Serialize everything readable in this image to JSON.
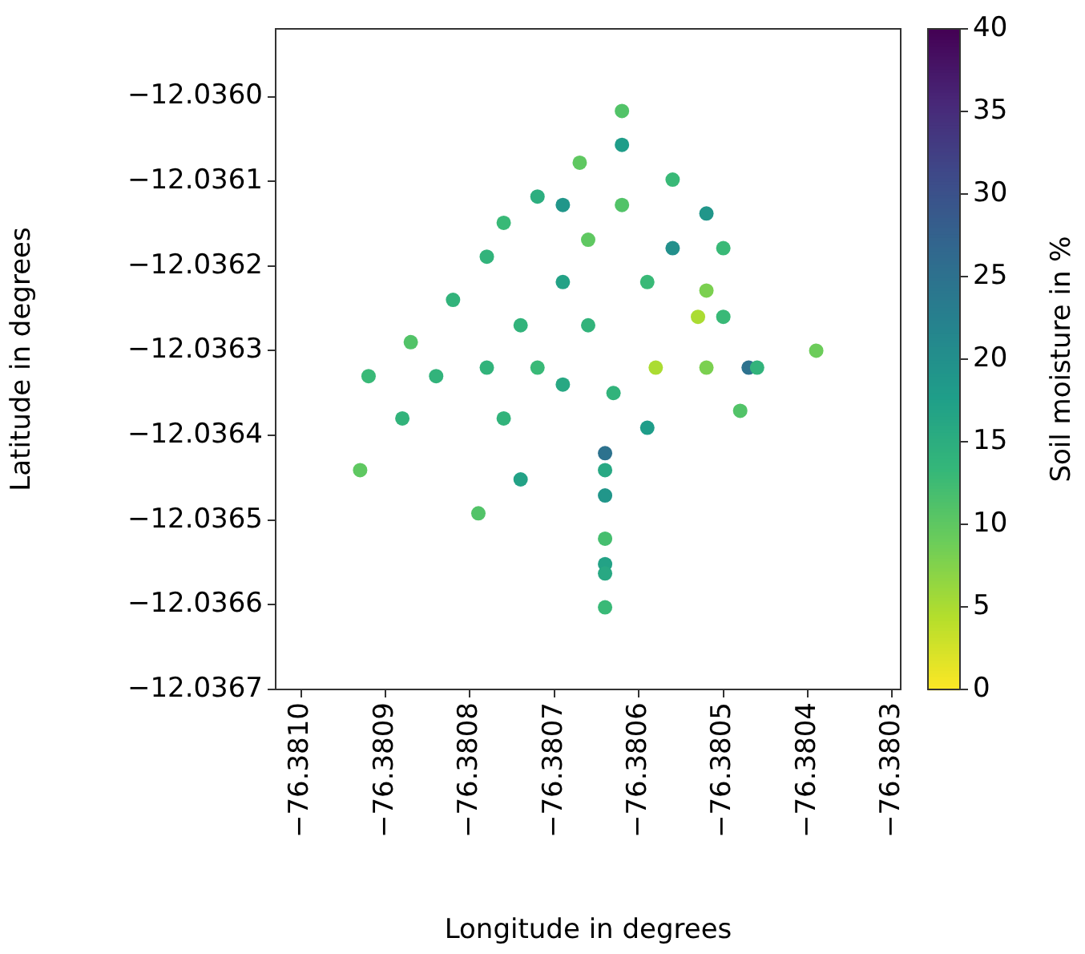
{
  "chart_data": {
    "type": "scatter",
    "xlabel": "Longitude in degrees",
    "ylabel": "Latitude in degrees",
    "clabel": "Soil moisture in %",
    "marker": "circle",
    "x": [
      -76.38067,
      -76.38072,
      -76.38069,
      -76.38076,
      -76.38066,
      -76.38078,
      -76.38069,
      -76.38082,
      -76.38074,
      -76.38066,
      -76.38087,
      -76.38062,
      -76.38062,
      -76.38056,
      -76.38062,
      -76.38052,
      -76.38056,
      -76.3805,
      -76.38059,
      -76.38052,
      -76.38053,
      -76.3805,
      -76.38039,
      -76.38092,
      -76.38084,
      -76.38078,
      -76.38072,
      -76.38069,
      -76.38088,
      -76.38076,
      -76.38093,
      -76.38074,
      -76.38079,
      -76.38058,
      -76.38052,
      -76.38047,
      -76.38046,
      -76.38063,
      -76.38048,
      -76.38059,
      -76.38064,
      -76.38064,
      -76.38064,
      -76.38064,
      -76.38064,
      -76.38064,
      -76.38064
    ],
    "values": [
      -12.036078,
      -12.036118,
      -12.036128,
      -12.036149,
      -12.036169,
      -12.036189,
      -12.036219,
      -12.03624,
      -12.03627,
      -12.03627,
      -12.03629,
      -12.036017,
      -12.036057,
      -12.036098,
      -12.036128,
      -12.036138,
      -12.036179,
      -12.036179,
      -12.036219,
      -12.036229,
      -12.03626,
      -12.03626,
      -12.0363,
      -12.03633,
      -12.03633,
      -12.03632,
      -12.03632,
      -12.03634,
      -12.03638,
      -12.03638,
      -12.036441,
      -12.036452,
      -12.036492,
      -12.03632,
      -12.03632,
      -12.03632,
      -12.03632,
      -12.03635,
      -12.036371,
      -12.036391,
      -12.036421,
      -12.036441,
      -12.036471,
      -12.036522,
      -12.036552,
      -12.036563,
      -12.036603
    ],
    "cvalues": [
      10,
      15,
      19,
      13,
      10,
      14,
      17,
      14,
      14,
      14,
      11,
      11,
      18,
      13,
      11,
      19,
      20,
      13,
      13,
      8,
      5,
      13,
      9,
      13,
      14,
      14,
      13,
      16,
      14,
      14,
      10,
      17,
      11,
      5,
      8,
      25,
      14,
      14,
      11,
      18,
      25,
      16,
      19,
      12,
      17,
      16,
      13
    ],
    "xlim": [
      -76.38103,
      -76.38029
    ],
    "ylim": [
      -12.0367,
      -12.03592
    ],
    "xticks": [
      {
        "value": -76.381,
        "label": "−76.3810"
      },
      {
        "value": -76.3809,
        "label": "−76.3809"
      },
      {
        "value": -76.3808,
        "label": "−76.3808"
      },
      {
        "value": -76.3807,
        "label": "−76.3807"
      },
      {
        "value": -76.3806,
        "label": "−76.3806"
      },
      {
        "value": -76.3805,
        "label": "−76.3805"
      },
      {
        "value": -76.3804,
        "label": "−76.3804"
      },
      {
        "value": -76.3803,
        "label": "−76.3803"
      }
    ],
    "yticks": [
      {
        "value": -12.036,
        "label": "−12.0360"
      },
      {
        "value": -12.0361,
        "label": "−12.0361"
      },
      {
        "value": -12.0362,
        "label": "−12.0362"
      },
      {
        "value": -12.0363,
        "label": "−12.0363"
      },
      {
        "value": -12.0364,
        "label": "−12.0364"
      },
      {
        "value": -12.0365,
        "label": "−12.0365"
      },
      {
        "value": -12.0366,
        "label": "−12.0366"
      },
      {
        "value": -12.0367,
        "label": "−12.0367"
      }
    ],
    "clim": [
      0,
      40
    ],
    "cticks": [
      0,
      5,
      10,
      15,
      20,
      25,
      30,
      35,
      40
    ],
    "grid": false
  }
}
